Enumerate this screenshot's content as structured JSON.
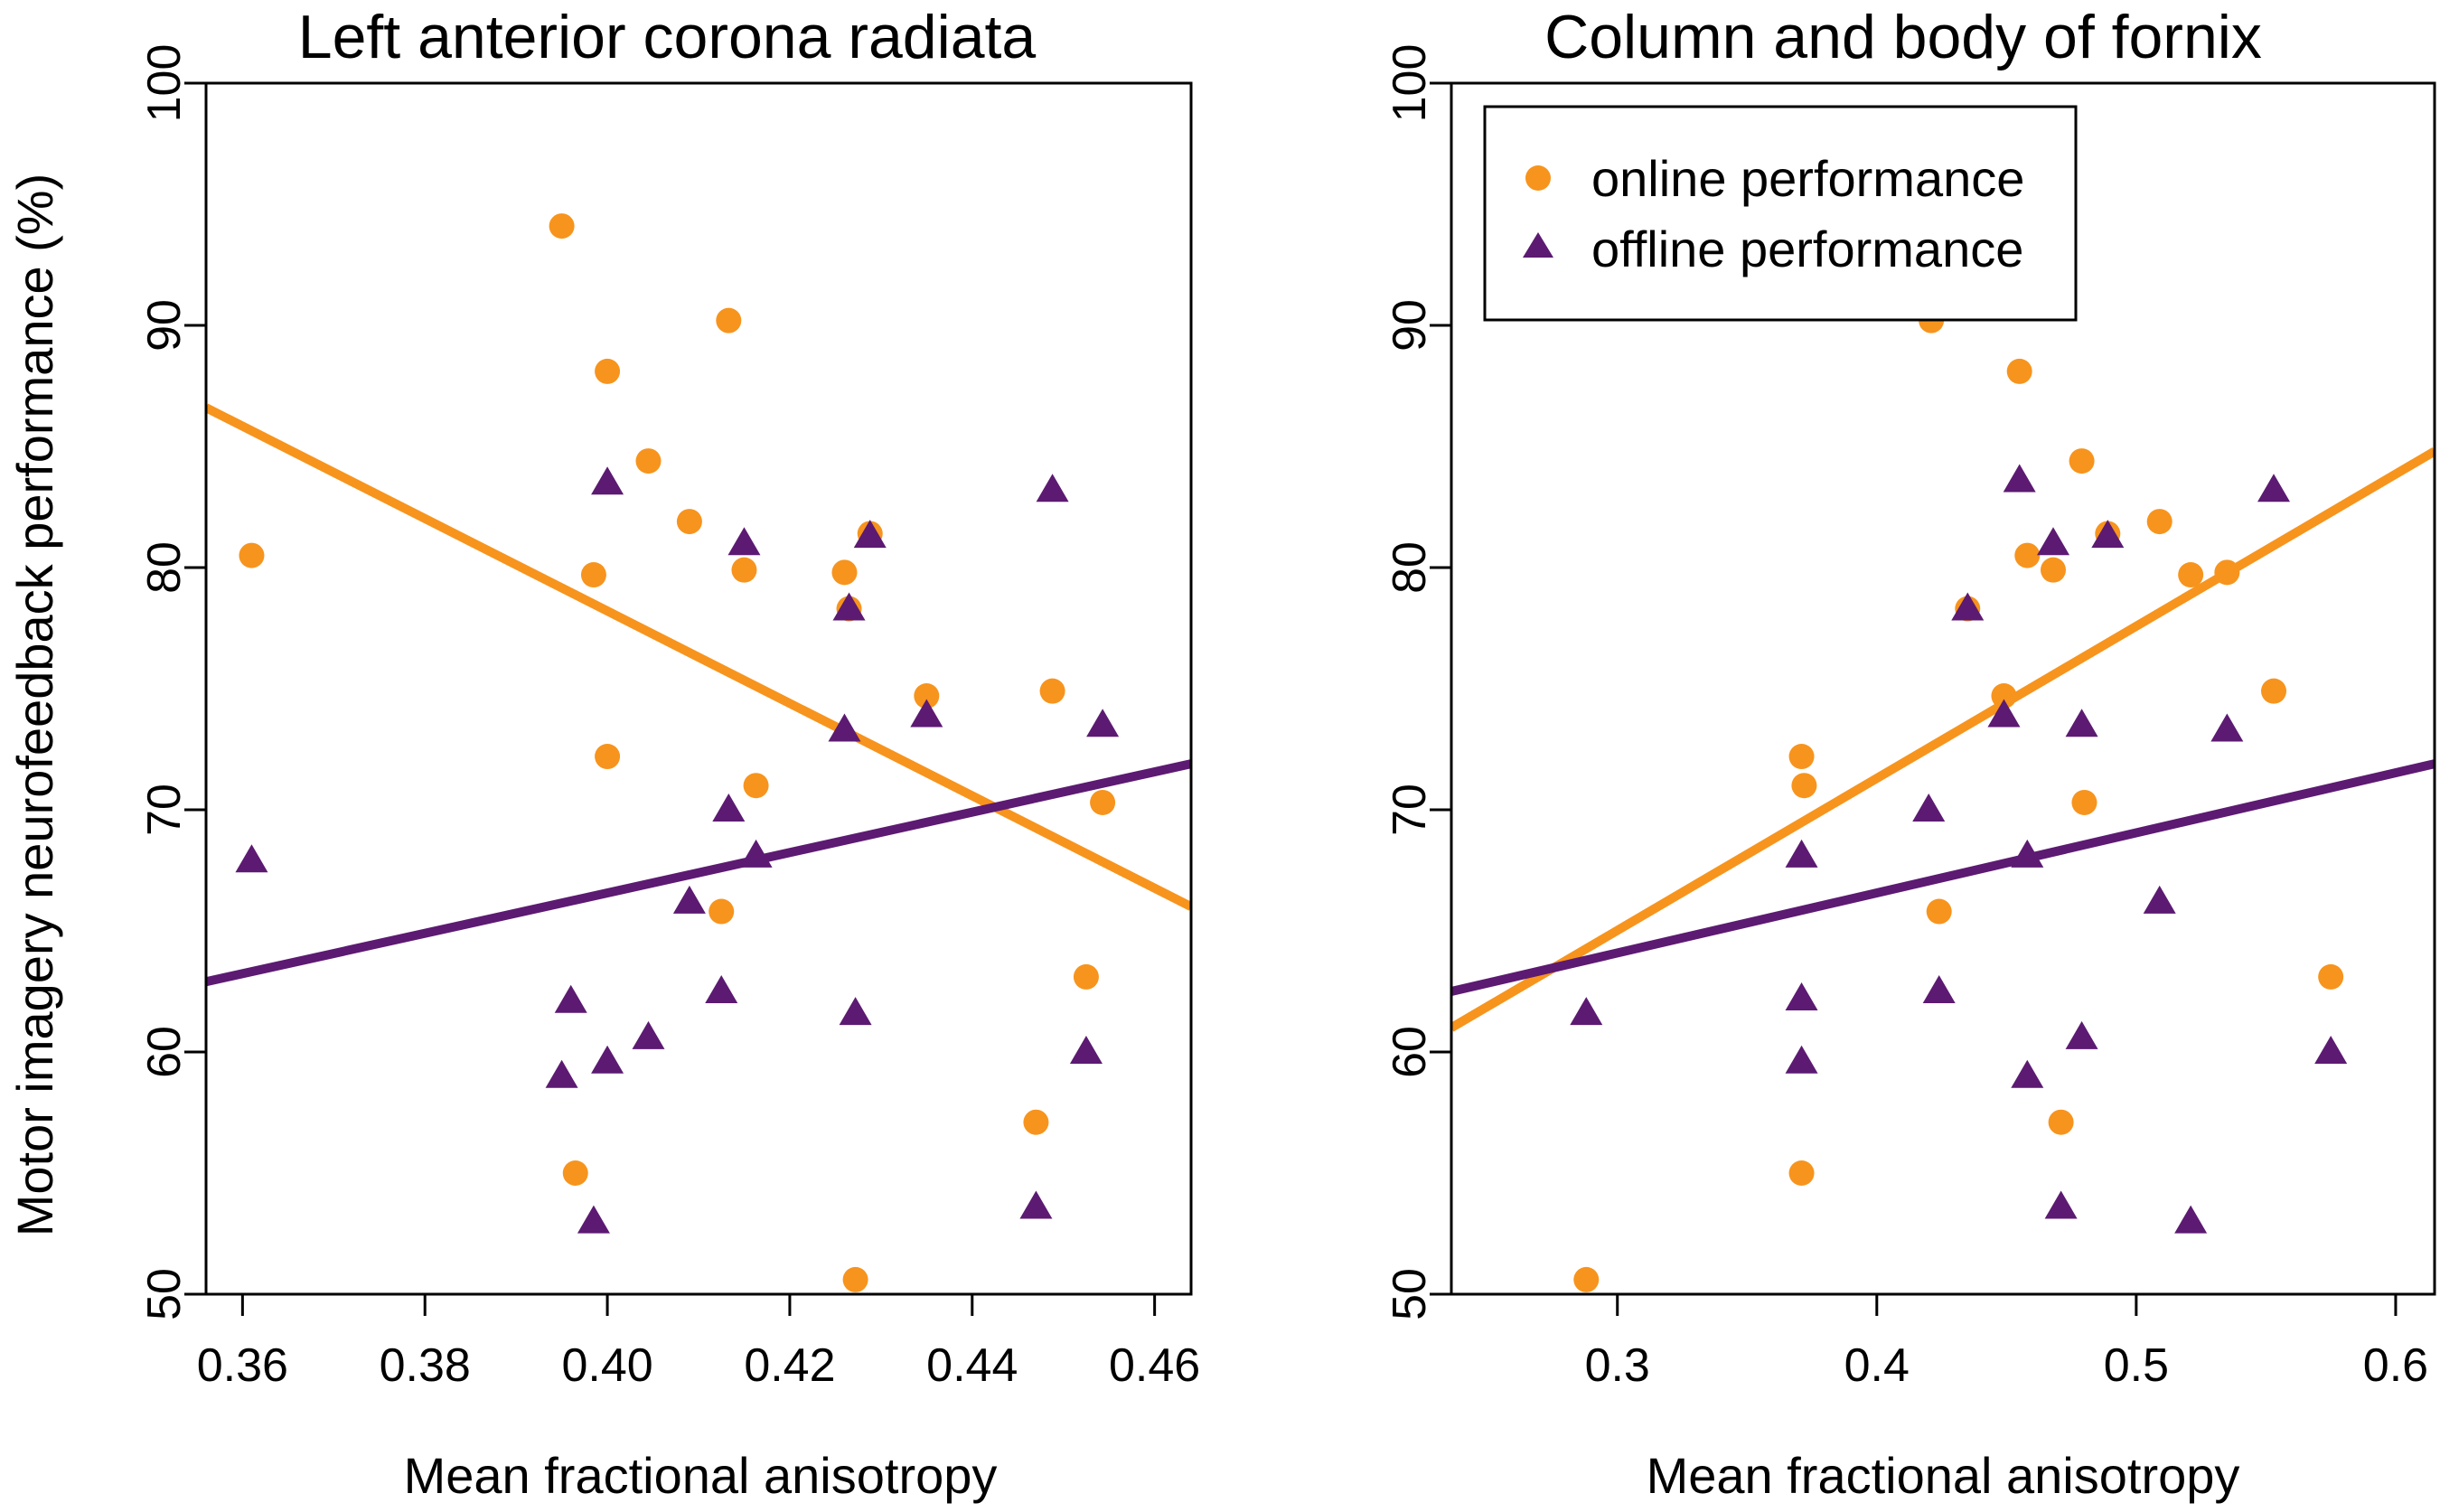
{
  "figure": {
    "ylabel": "Motor imagery neurofeedback performance (%)",
    "colors": {
      "online": "#f7941d",
      "offline": "#5c1a72",
      "axis": "#000000"
    },
    "legend": {
      "entries": [
        {
          "label": "online performance",
          "marker": "circle",
          "color": "#f7941d"
        },
        {
          "label": "offline performance",
          "marker": "triangle",
          "color": "#5c1a72"
        }
      ]
    }
  },
  "chart_data": [
    {
      "type": "scatter",
      "title": "Left anterior corona radiata",
      "xlabel": "Mean fractional anisotropy",
      "ylabel": "Motor imagery neurofeedback performance (%)",
      "xlim": [
        0.356,
        0.464
      ],
      "ylim": [
        50,
        100
      ],
      "xticks": [
        "0.36",
        "0.38",
        "0.40",
        "0.42",
        "0.44",
        "0.46"
      ],
      "xtick_values": [
        0.36,
        0.38,
        0.4,
        0.42,
        0.44,
        0.46
      ],
      "yticks": [
        "50",
        "60",
        "70",
        "80",
        "90",
        "100"
      ],
      "ytick_values": [
        50,
        60,
        70,
        80,
        90,
        100
      ],
      "series": [
        {
          "name": "online performance",
          "marker": "circle",
          "color": "#f7941d",
          "points": [
            [
              0.361,
              80.5
            ],
            [
              0.395,
              94.1
            ],
            [
              0.3965,
              55.0
            ],
            [
              0.3985,
              79.7
            ],
            [
              0.4,
              88.1
            ],
            [
              0.4,
              72.2
            ],
            [
              0.4045,
              84.4
            ],
            [
              0.409,
              81.9
            ],
            [
              0.4125,
              65.8
            ],
            [
              0.4133,
              90.2
            ],
            [
              0.415,
              79.9
            ],
            [
              0.4163,
              71.0
            ],
            [
              0.426,
              79.8
            ],
            [
              0.4265,
              78.3
            ],
            [
              0.4272,
              50.6
            ],
            [
              0.4288,
              81.4
            ],
            [
              0.435,
              74.7
            ],
            [
              0.447,
              57.1
            ],
            [
              0.4488,
              74.9
            ],
            [
              0.4525,
              63.1
            ],
            [
              0.4543,
              70.3
            ]
          ],
          "fit_line": [
            [
              0.356,
              86.6
            ],
            [
              0.464,
              66.0
            ]
          ]
        },
        {
          "name": "offline performance",
          "marker": "triangle",
          "color": "#5c1a72",
          "points": [
            [
              0.361,
              67.9
            ],
            [
              0.395,
              59.0
            ],
            [
              0.396,
              62.1
            ],
            [
              0.3985,
              53.0
            ],
            [
              0.4,
              83.5
            ],
            [
              0.4,
              59.6
            ],
            [
              0.4045,
              60.6
            ],
            [
              0.409,
              66.2
            ],
            [
              0.4125,
              62.5
            ],
            [
              0.4133,
              70.0
            ],
            [
              0.415,
              81.0
            ],
            [
              0.4163,
              68.1
            ],
            [
              0.426,
              73.3
            ],
            [
              0.4265,
              78.3
            ],
            [
              0.4272,
              61.6
            ],
            [
              0.4288,
              81.3
            ],
            [
              0.435,
              73.9
            ],
            [
              0.447,
              53.6
            ],
            [
              0.4488,
              83.2
            ],
            [
              0.4525,
              60.0
            ],
            [
              0.4543,
              73.5
            ]
          ],
          "fit_line": [
            [
              0.356,
              62.9
            ],
            [
              0.464,
              71.9
            ]
          ]
        }
      ]
    },
    {
      "type": "scatter",
      "title": "Column and body of fornix",
      "xlabel": "Mean fractional anisotropy",
      "ylabel": "Motor imagery neurofeedback performance (%)",
      "xlim": [
        0.236,
        0.615
      ],
      "ylim": [
        50,
        100
      ],
      "xticks": [
        "0.3",
        "0.4",
        "0.5",
        "0.6"
      ],
      "xtick_values": [
        0.3,
        0.4,
        0.5,
        0.6
      ],
      "yticks": [
        "50",
        "60",
        "70",
        "80",
        "90",
        "100"
      ],
      "ytick_values": [
        50,
        60,
        70,
        80,
        90,
        100
      ],
      "legend_position": "top-left",
      "series": [
        {
          "name": "online performance",
          "marker": "circle",
          "color": "#f7941d",
          "points": [
            [
              0.288,
              50.6
            ],
            [
              0.371,
              72.2
            ],
            [
              0.372,
              71.0
            ],
            [
              0.371,
              55.0
            ],
            [
              0.421,
              90.2
            ],
            [
              0.424,
              65.8
            ],
            [
              0.435,
              78.3
            ],
            [
              0.449,
              74.7
            ],
            [
              0.455,
              88.1
            ],
            [
              0.458,
              80.5
            ],
            [
              0.468,
              79.9
            ],
            [
              0.471,
              57.1
            ],
            [
              0.479,
              84.4
            ],
            [
              0.48,
              70.3
            ],
            [
              0.489,
              81.4
            ],
            [
              0.509,
              81.9
            ],
            [
              0.521,
              79.7
            ],
            [
              0.535,
              79.8
            ],
            [
              0.553,
              74.9
            ],
            [
              0.575,
              63.1
            ]
          ],
          "fit_line": [
            [
              0.236,
              61.0
            ],
            [
              0.615,
              84.8
            ]
          ]
        },
        {
          "name": "offline performance",
          "marker": "triangle",
          "color": "#5c1a72",
          "points": [
            [
              0.288,
              61.6
            ],
            [
              0.371,
              68.1
            ],
            [
              0.371,
              62.2
            ],
            [
              0.371,
              59.6
            ],
            [
              0.42,
              70.0
            ],
            [
              0.424,
              62.5
            ],
            [
              0.435,
              78.3
            ],
            [
              0.449,
              73.9
            ],
            [
              0.455,
              83.6
            ],
            [
              0.458,
              68.1
            ],
            [
              0.458,
              59.0
            ],
            [
              0.468,
              81.0
            ],
            [
              0.471,
              53.6
            ],
            [
              0.479,
              73.5
            ],
            [
              0.479,
              60.6
            ],
            [
              0.489,
              81.3
            ],
            [
              0.509,
              66.2
            ],
            [
              0.521,
              53.0
            ],
            [
              0.535,
              73.3
            ],
            [
              0.553,
              83.2
            ],
            [
              0.575,
              60.0
            ]
          ],
          "fit_line": [
            [
              0.236,
              62.5
            ],
            [
              0.615,
              71.9
            ]
          ]
        }
      ]
    }
  ]
}
